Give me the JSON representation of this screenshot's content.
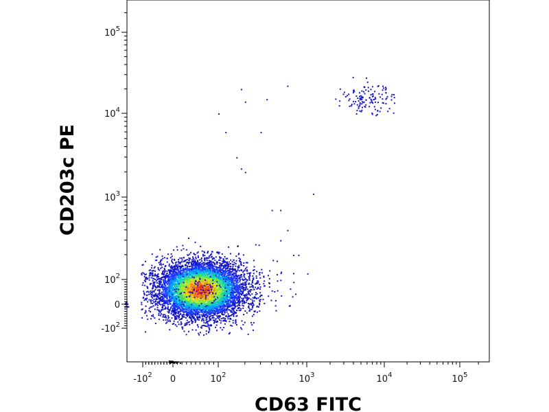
{
  "chart_data": {
    "type": "scatter",
    "title": "",
    "xlabel": "CD63 FITC",
    "ylabel": "CD203c PE",
    "x_scale": "biexponential",
    "y_scale": "biexponential",
    "xlim": [
      -1000,
      300000
    ],
    "ylim": [
      -1000,
      300000
    ],
    "x_ticks": [
      {
        "base": "-10",
        "exp": "2",
        "value": -100
      },
      {
        "base": "0",
        "exp": "",
        "value": 0
      },
      {
        "base": "10",
        "exp": "2",
        "value": 100
      },
      {
        "base": "10",
        "exp": "3",
        "value": 1000
      },
      {
        "base": "10",
        "exp": "4",
        "value": 10000
      },
      {
        "base": "10",
        "exp": "5",
        "value": 100000
      }
    ],
    "y_ticks": [
      {
        "base": "-10",
        "exp": "2",
        "value": -100
      },
      {
        "base": "0",
        "exp": "",
        "value": 0
      },
      {
        "base": "10",
        "exp": "2",
        "value": 100
      },
      {
        "base": "10",
        "exp": "3",
        "value": 1000
      },
      {
        "base": "10",
        "exp": "4",
        "value": 10000
      },
      {
        "base": "10",
        "exp": "5",
        "value": 100000
      }
    ],
    "color_scale": "density (blue low → green → yellow → red high)",
    "populations": [
      {
        "name": "",
        "description": "main dense population",
        "center": [
          60,
          60
        ],
        "density": "high"
      },
      {
        "name": "",
        "description": "upper-right sparse population",
        "center": [
          5000,
          15000
        ],
        "density": "low"
      }
    ],
    "sparse_points": [
      [
        100,
        10000
      ],
      [
        120,
        6000
      ],
      [
        180,
        20000
      ],
      [
        200,
        14000
      ],
      [
        160,
        3000
      ],
      [
        180,
        2200
      ],
      [
        200,
        2000
      ],
      [
        300,
        6000
      ],
      [
        350,
        15000
      ],
      [
        600,
        22000
      ],
      [
        1200,
        1100
      ],
      [
        500,
        700
      ],
      [
        400,
        700
      ],
      [
        600,
        400
      ],
      [
        700,
        200
      ],
      [
        800,
        200
      ],
      [
        700,
        120
      ],
      [
        500,
        300
      ]
    ],
    "colors": {
      "low": "#1a1ad6",
      "mid": "#22c0a8",
      "high_mid": "#e8e020",
      "high": "#e82010"
    }
  }
}
